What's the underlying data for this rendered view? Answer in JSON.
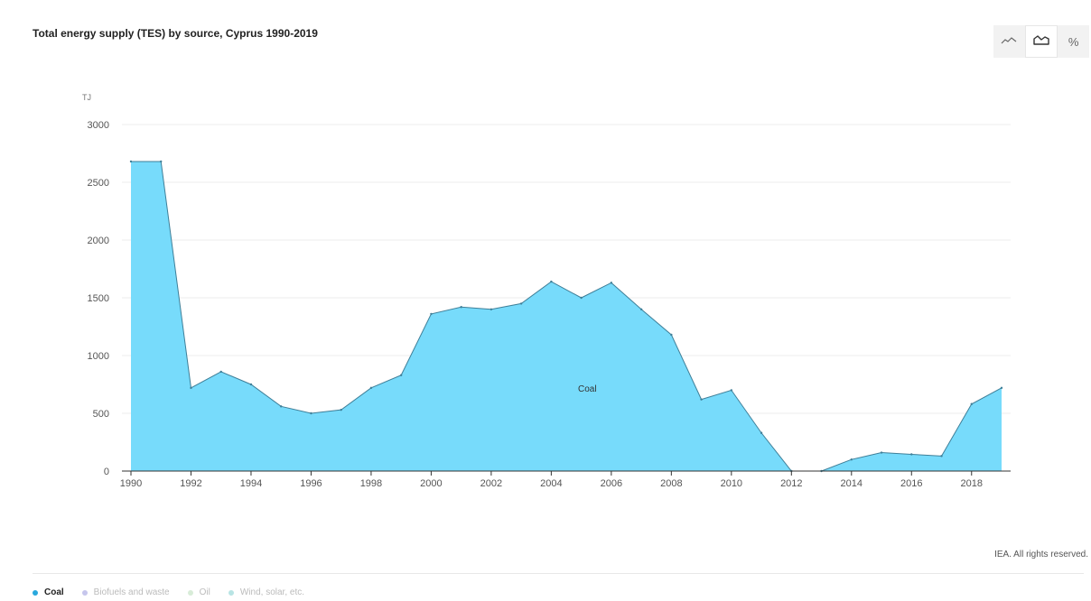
{
  "title": "Total energy supply (TES) by source, Cyprus 1990-2019",
  "credit": "IEA. All rights reserved.",
  "toolbar": {
    "buttons": [
      {
        "name": "line-chart-icon",
        "active": false
      },
      {
        "name": "area-chart-icon",
        "active": true
      },
      {
        "name": "percent-icon",
        "label": "%",
        "active": false
      }
    ]
  },
  "legend": [
    {
      "label": "Coal",
      "color": "#29a8dd",
      "active": true
    },
    {
      "label": "Biofuels and waste",
      "color": "#c6c6ec",
      "active": false
    },
    {
      "label": "Oil",
      "color": "#d8ecd8",
      "active": false
    },
    {
      "label": "Wind, solar, etc.",
      "color": "#b8e4e4",
      "active": false
    }
  ],
  "chart_data": {
    "type": "area",
    "unit_label": "TJ",
    "ylim": [
      0,
      3000
    ],
    "yticks": [
      0,
      500,
      1000,
      1500,
      2000,
      2500,
      3000
    ],
    "xticks": [
      1990,
      1992,
      1994,
      1996,
      1998,
      2000,
      2002,
      2004,
      2006,
      2008,
      2010,
      2012,
      2014,
      2016,
      2018
    ],
    "x": [
      1990,
      1991,
      1992,
      1993,
      1994,
      1995,
      1996,
      1997,
      1998,
      1999,
      2000,
      2001,
      2002,
      2003,
      2004,
      2005,
      2006,
      2007,
      2008,
      2009,
      2010,
      2011,
      2012,
      2013,
      2014,
      2015,
      2016,
      2017,
      2018,
      2019
    ],
    "series": [
      {
        "name": "Coal",
        "color": "#77dbfb",
        "line_color": "#3f7f98",
        "values": [
          2680,
          2680,
          720,
          860,
          750,
          560,
          500,
          530,
          720,
          830,
          1360,
          1420,
          1400,
          1450,
          1640,
          1500,
          1630,
          1400,
          1180,
          620,
          700,
          330,
          0,
          0,
          100,
          160,
          145,
          130,
          580,
          720
        ]
      }
    ],
    "grid": true,
    "legend_position": "bottom-left"
  }
}
